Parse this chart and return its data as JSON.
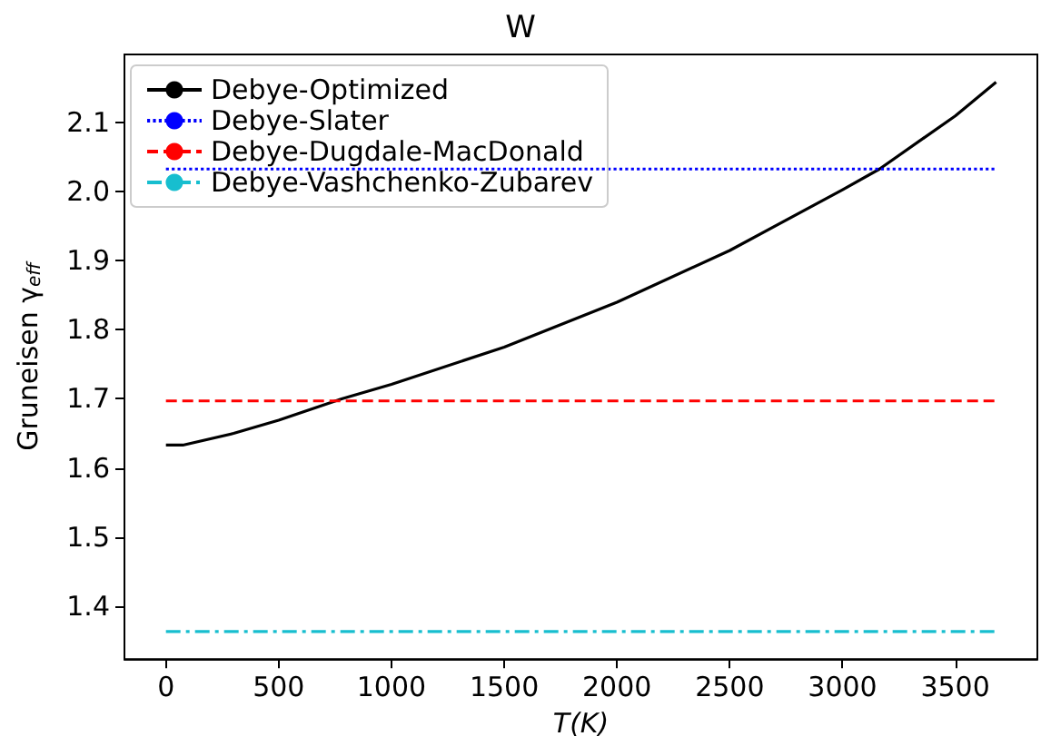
{
  "chart_data": {
    "type": "line",
    "title": "W",
    "xlabel": "T(K)",
    "ylabel": "Gruneisen γ$_{eff}$",
    "xlim": [
      -184,
      3864
    ],
    "xticks": [
      0,
      500,
      1000,
      1500,
      2000,
      2500,
      3000,
      3500
    ],
    "ylim": [
      1.323,
      2.199
    ],
    "yticks": [
      1.4,
      1.5,
      1.6,
      1.7,
      1.8,
      1.9,
      {
        "value": 2,
        "label": "2.0"
      },
      2.1
    ],
    "grid": false,
    "legend": "top left",
    "marker": "none",
    "series": [
      {
        "name": "Debye-Optimized",
        "color": "#000000",
        "line_style": "solid",
        "x": [
          0,
          75,
          300,
          500,
          779,
          1000,
          1500,
          2000,
          2500,
          3000,
          3164,
          3500,
          3681
        ],
        "values": [
          1.633,
          1.633,
          1.65,
          1.669,
          1.7,
          1.721,
          1.775,
          1.84,
          1.915,
          2.003,
          2.033,
          2.11,
          2.159
        ]
      },
      {
        "name": "Debye-Slater",
        "color": "#0000ff",
        "line_style": "dotted",
        "x": [
          0,
          3681
        ],
        "values": [
          2.033,
          2.033
        ]
      },
      {
        "name": "Debye-Dugdale-MacDonald",
        "color": "#ff0000",
        "line_style": "dashed",
        "x": [
          0,
          3681
        ],
        "values": [
          1.697,
          1.697
        ]
      },
      {
        "name": "Debye-Vashchenko-Zubarev",
        "color": "#17becf",
        "line_style": "dashdot",
        "x": [
          0,
          3681
        ],
        "values": [
          1.363,
          1.363
        ]
      }
    ]
  }
}
